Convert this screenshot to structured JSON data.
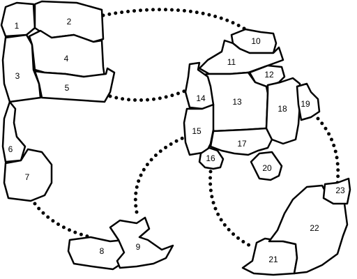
{
  "regions": [
    {
      "id": "region-1",
      "label": "1"
    },
    {
      "id": "region-2",
      "label": "2"
    },
    {
      "id": "region-3",
      "label": "3"
    },
    {
      "id": "region-4",
      "label": "4"
    },
    {
      "id": "region-5",
      "label": "5"
    },
    {
      "id": "region-6",
      "label": "6"
    },
    {
      "id": "region-7",
      "label": "7"
    },
    {
      "id": "region-8",
      "label": "8"
    },
    {
      "id": "region-9",
      "label": "9"
    },
    {
      "id": "region-10",
      "label": "10"
    },
    {
      "id": "region-11",
      "label": "11"
    },
    {
      "id": "region-12",
      "label": "12"
    },
    {
      "id": "region-13",
      "label": "13"
    },
    {
      "id": "region-14",
      "label": "14"
    },
    {
      "id": "region-15",
      "label": "15"
    },
    {
      "id": "region-16",
      "label": "16"
    },
    {
      "id": "region-17",
      "label": "17"
    },
    {
      "id": "region-18",
      "label": "18"
    },
    {
      "id": "region-19",
      "label": "19"
    },
    {
      "id": "region-20",
      "label": "20"
    },
    {
      "id": "region-21",
      "label": "21"
    },
    {
      "id": "region-22",
      "label": "22"
    },
    {
      "id": "region-23",
      "label": "23"
    }
  ],
  "connections": [
    {
      "id": "link-2-10",
      "from": "2",
      "to": "10"
    },
    {
      "id": "link-5-14",
      "from": "5",
      "to": "14"
    },
    {
      "id": "link-7-8",
      "from": "7",
      "to": "8"
    },
    {
      "id": "link-9-15",
      "from": "9",
      "to": "15"
    },
    {
      "id": "link-16-21",
      "from": "16",
      "to": "21"
    },
    {
      "id": "link-19-23",
      "from": "19",
      "to": "23"
    }
  ],
  "colors": {
    "line": "#000000",
    "fill": "#ffffff",
    "background": "#ffffff"
  }
}
